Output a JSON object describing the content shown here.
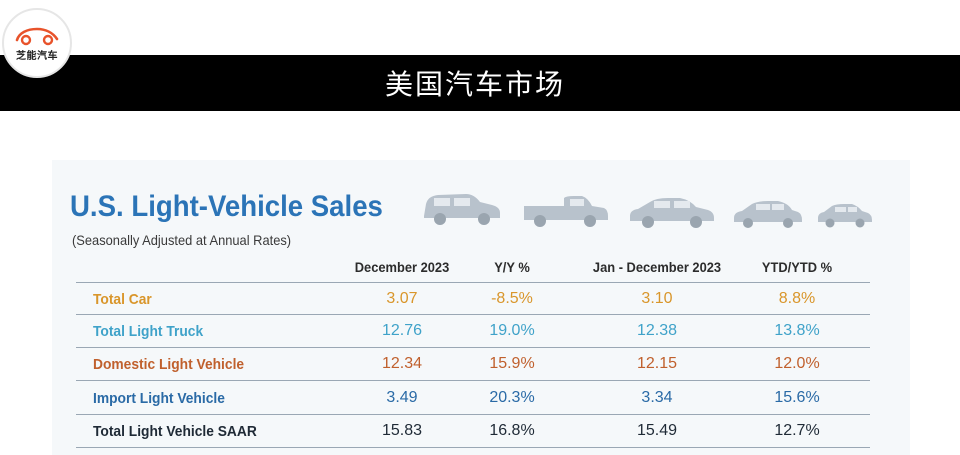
{
  "header": {
    "logo_text": "芝能汽车",
    "logo_icon": "car-outline-icon",
    "title": "美国汽车市场"
  },
  "panel": {
    "headline": "U.S. Light-Vehicle Sales",
    "subheadline": "(Seasonally Adjusted at Annual Rates)",
    "car_icons": [
      "suv-icon",
      "pickup-truck-icon",
      "sedan-icon",
      "compact-car-icon",
      "small-car-icon"
    ],
    "columns": [
      "December 2023",
      "Y/Y %",
      "Jan - December 2023",
      "YTD/YTD %"
    ],
    "rows": [
      {
        "label": "Total Car",
        "color": "#d9962b",
        "values": [
          "3.07",
          "-8.5%",
          "3.10",
          "8.8%"
        ]
      },
      {
        "label": "Total Light Truck",
        "color": "#3fa2c9",
        "values": [
          "12.76",
          "19.0%",
          "12.38",
          "13.8%"
        ]
      },
      {
        "label": "Domestic Light Vehicle",
        "color": "#c0602d",
        "values": [
          "12.34",
          "15.9%",
          "12.15",
          "12.0%"
        ]
      },
      {
        "label": "Import Light Vehicle",
        "color": "#2a6aa6",
        "values": [
          "3.49",
          "20.3%",
          "3.34",
          "15.6%"
        ]
      },
      {
        "label": "Total Light Vehicle SAAR",
        "color": "#1f2a36",
        "values": [
          "15.83",
          "16.8%",
          "15.49",
          "12.7%"
        ]
      }
    ]
  }
}
